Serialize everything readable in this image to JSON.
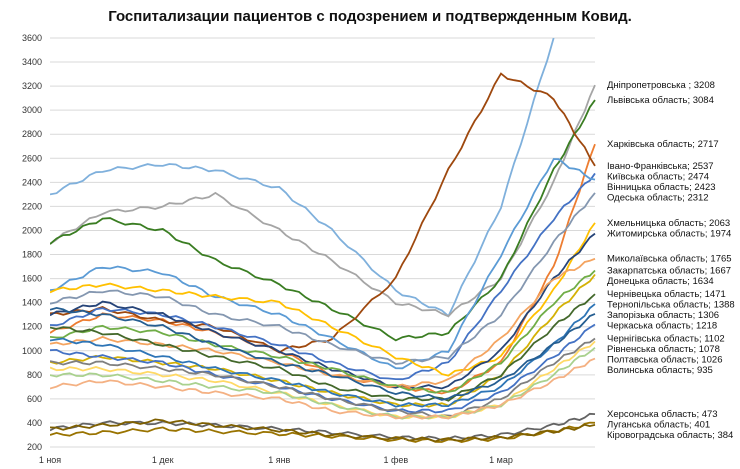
{
  "chart_data": {
    "type": "line",
    "title": "Госпитализации пациентов с подозрением и подтвержденным Ковид.",
    "xlabel": "",
    "ylabel": "",
    "ylim": [
      200,
      3600
    ],
    "yticks": [
      200,
      400,
      600,
      800,
      1000,
      1200,
      1400,
      1600,
      1800,
      2000,
      2200,
      2400,
      2600,
      2800,
      3000,
      3200,
      3400,
      3600
    ],
    "xticks": [
      {
        "date": "11-01",
        "label": "1 ноя"
      },
      {
        "date": "12-01",
        "label": "1 дек"
      },
      {
        "date": "01-01",
        "label": "1 янв"
      },
      {
        "date": "02-01",
        "label": "1 фев"
      },
      {
        "date": "03-01",
        "label": "1 мар"
      }
    ],
    "xlim": [
      "11-01",
      "03-26"
    ],
    "grid": "horizontal",
    "legend": "labels at line ends (right)",
    "dates": [
      "11-01",
      "11-15",
      "12-01",
      "12-15",
      "01-01",
      "01-15",
      "02-01",
      "02-15",
      "03-01",
      "03-15",
      "03-26"
    ],
    "series": [
      {
        "name": "",
        "color": "#7fb0dc",
        "values": [
          2300,
          2500,
          2550,
          2500,
          2350,
          2000,
          1500,
          1300,
          2200,
          3600,
          null
        ]
      },
      {
        "name": "Дніпропетровська ",
        "last": 3208,
        "color": "#a5a5a5",
        "values": [
          1900,
          2150,
          2200,
          2300,
          2000,
          1750,
          1400,
          1300,
          1600,
          2400,
          3208
        ]
      },
      {
        "name": "Львівська область",
        "last": 3084,
        "color": "#3a7d22",
        "values": [
          1900,
          2100,
          2000,
          1750,
          1550,
          1350,
          1100,
          1150,
          1600,
          2500,
          3084
        ]
      },
      {
        "name": "Харківська область",
        "last": 2717,
        "color": "#ed7d31",
        "values": [
          1150,
          1300,
          1250,
          1150,
          1000,
          800,
          700,
          650,
          900,
          1700,
          2717
        ]
      },
      {
        "name": "Івано-Франківська",
        "last": 2537,
        "color": "#9e480e",
        "values": [
          1300,
          1350,
          1250,
          1200,
          1000,
          1100,
          1600,
          2500,
          3300,
          3100,
          2537
        ]
      },
      {
        "name": "Київська область",
        "last": 2474,
        "color": "#4472c4",
        "values": [
          1200,
          1350,
          1300,
          1200,
          1050,
          900,
          750,
          900,
          1500,
          2100,
          2474
        ]
      },
      {
        "name": "Вінницька область",
        "last": 2423,
        "color": "#5b9bd5",
        "values": [
          1500,
          1700,
          1650,
          1450,
          1300,
          1100,
          850,
          1000,
          1800,
          2600,
          2423
        ]
      },
      {
        "name": "Одеська область",
        "last": 2312,
        "color": "#8497b0",
        "values": [
          1400,
          1500,
          1450,
          1300,
          1200,
          1050,
          900,
          950,
          1300,
          1900,
          2312
        ]
      },
      {
        "name": "Хмельницька область",
        "last": 2063,
        "color": "#ffc000",
        "values": [
          1500,
          1550,
          1500,
          1450,
          1400,
          1200,
          950,
          800,
          950,
          1500,
          2063
        ]
      },
      {
        "name": "Житомирська область",
        "last": 1974,
        "color": "#264478",
        "values": [
          1300,
          1400,
          1300,
          1150,
          1000,
          850,
          700,
          700,
          1000,
          1600,
          1974
        ]
      },
      {
        "name": "Миколаївська область",
        "last": 1765,
        "color": "#f4a460",
        "values": [
          1050,
          1100,
          1050,
          1000,
          900,
          800,
          700,
          750,
          1100,
          1600,
          1765
        ]
      },
      {
        "name": "Закарпатська область",
        "last": 1667,
        "color": "#70ad47",
        "values": [
          1100,
          1200,
          1150,
          1050,
          950,
          850,
          700,
          650,
          900,
          1400,
          1667
        ]
      },
      {
        "name": "Донецька область",
        "last": 1634,
        "color": "#d4b106",
        "values": [
          900,
          950,
          900,
          850,
          750,
          650,
          550,
          550,
          800,
          1300,
          1634
        ]
      },
      {
        "name": "Чернівецька область",
        "last": 1471,
        "color": "#43682b",
        "values": [
          1200,
          1150,
          1050,
          950,
          850,
          700,
          600,
          600,
          800,
          1200,
          1471
        ]
      },
      {
        "name": "Тернопільська область",
        "last": 1388,
        "color": "#2e75b6",
        "values": [
          1100,
          1050,
          950,
          850,
          750,
          650,
          550,
          550,
          700,
          1050,
          1388
        ]
      },
      {
        "name": "Запорізька область",
        "last": 1306,
        "color": "#255e91",
        "values": [
          1350,
          1300,
          1200,
          1050,
          900,
          800,
          650,
          600,
          750,
          1050,
          1306
        ]
      },
      {
        "name": "Черкаська область",
        "last": 1218,
        "color": "#4472c4",
        "values": [
          1000,
          950,
          900,
          800,
          700,
          600,
          500,
          500,
          650,
          950,
          1218
        ]
      },
      {
        "name": "Чернігівська область",
        "last": 1102,
        "color": "#7f7f7f",
        "values": [
          900,
          900,
          850,
          800,
          700,
          600,
          500,
          450,
          600,
          900,
          1102
        ]
      },
      {
        "name": "Рівненська область",
        "last": 1078,
        "color": "#ffd966",
        "values": [
          850,
          850,
          800,
          750,
          650,
          550,
          450,
          450,
          550,
          850,
          1078
        ]
      },
      {
        "name": "Полтавська область",
        "last": 1026,
        "color": "#a9d18e",
        "values": [
          800,
          800,
          750,
          700,
          650,
          550,
          450,
          450,
          550,
          800,
          1026
        ]
      },
      {
        "name": "Волинська область",
        "last": 935,
        "color": "#f4b183",
        "values": [
          700,
          750,
          700,
          650,
          600,
          500,
          450,
          450,
          550,
          750,
          935
        ]
      },
      {
        "name": "Херсонська область",
        "last": 473,
        "color": "#636363",
        "values": [
          350,
          400,
          400,
          380,
          350,
          320,
          280,
          270,
          300,
          380,
          473
        ]
      },
      {
        "name": "Луганська область",
        "last": 401,
        "color": "#997300",
        "values": [
          300,
          320,
          350,
          330,
          310,
          290,
          260,
          250,
          270,
          330,
          401
        ]
      },
      {
        "name": "Кіровоградська область",
        "last": 384,
        "color": "#7f6000",
        "values": [
          350,
          380,
          420,
          380,
          340,
          300,
          270,
          260,
          280,
          330,
          384
        ]
      }
    ]
  }
}
